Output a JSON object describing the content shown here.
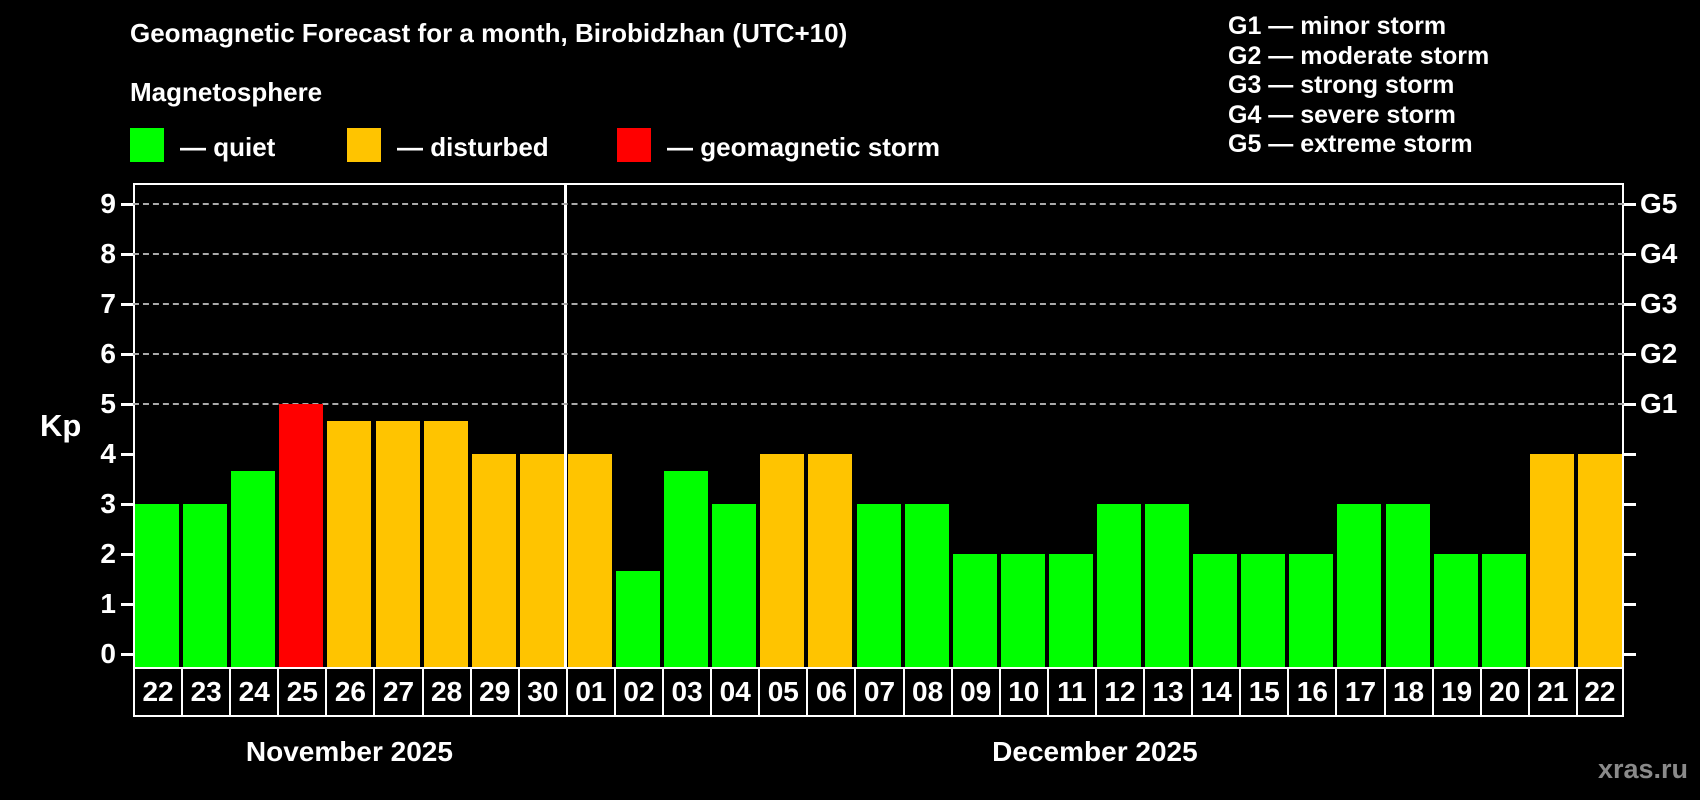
{
  "title": "Geomagnetic Forecast for a month, Birobidzhan (UTC+10)",
  "subtitle": "Magnetosphere",
  "legend": {
    "items": [
      {
        "key": "quiet",
        "label": "— quiet",
        "color": "#00ff00"
      },
      {
        "key": "disturbed",
        "label": "— disturbed",
        "color": "#ffc400"
      },
      {
        "key": "storm",
        "label": "— geomagnetic storm",
        "color": "#ff0000"
      }
    ]
  },
  "g_scale_legend": [
    "G1 — minor storm",
    "G2 — moderate storm",
    "G3 — strong storm",
    "G4 — severe storm",
    "G5 — extreme storm"
  ],
  "watermark": "xras.ru",
  "chart_data": {
    "type": "bar",
    "ylabel": "Kp",
    "ylim": [
      0,
      9
    ],
    "yticks": [
      0,
      1,
      2,
      3,
      4,
      5,
      6,
      7,
      8,
      9
    ],
    "gridlines_at_kp": [
      5,
      6,
      7,
      8,
      9
    ],
    "grid": "dashed horizontal at storm levels only",
    "right_axis_labels": [
      {
        "kp": 5,
        "label": "G1"
      },
      {
        "kp": 6,
        "label": "G2"
      },
      {
        "kp": 7,
        "label": "G3"
      },
      {
        "kp": 8,
        "label": "G4"
      },
      {
        "kp": 9,
        "label": "G5"
      }
    ],
    "months": [
      {
        "label": "November 2025",
        "key": "nov",
        "days": 9
      },
      {
        "label": "December 2025",
        "key": "dec",
        "days": 22
      }
    ],
    "bars": [
      {
        "day": "22",
        "kp": 3,
        "status": "quiet"
      },
      {
        "day": "23",
        "kp": 3,
        "status": "quiet"
      },
      {
        "day": "24",
        "kp": 3.67,
        "status": "quiet"
      },
      {
        "day": "25",
        "kp": 5,
        "status": "storm"
      },
      {
        "day": "26",
        "kp": 4.67,
        "status": "disturbed"
      },
      {
        "day": "27",
        "kp": 4.67,
        "status": "disturbed"
      },
      {
        "day": "28",
        "kp": 4.67,
        "status": "disturbed"
      },
      {
        "day": "29",
        "kp": 4,
        "status": "disturbed"
      },
      {
        "day": "30",
        "kp": 4,
        "status": "disturbed"
      },
      {
        "day": "01",
        "kp": 4,
        "status": "disturbed"
      },
      {
        "day": "02",
        "kp": 1.67,
        "status": "quiet"
      },
      {
        "day": "03",
        "kp": 3.67,
        "status": "quiet"
      },
      {
        "day": "04",
        "kp": 3,
        "status": "quiet"
      },
      {
        "day": "05",
        "kp": 4,
        "status": "disturbed"
      },
      {
        "day": "06",
        "kp": 4,
        "status": "disturbed"
      },
      {
        "day": "07",
        "kp": 3,
        "status": "quiet"
      },
      {
        "day": "08",
        "kp": 3,
        "status": "quiet"
      },
      {
        "day": "09",
        "kp": 2,
        "status": "quiet"
      },
      {
        "day": "10",
        "kp": 2,
        "status": "quiet"
      },
      {
        "day": "11",
        "kp": 2,
        "status": "quiet"
      },
      {
        "day": "12",
        "kp": 3,
        "status": "quiet"
      },
      {
        "day": "13",
        "kp": 3,
        "status": "quiet"
      },
      {
        "day": "14",
        "kp": 2,
        "status": "quiet"
      },
      {
        "day": "15",
        "kp": 2,
        "status": "quiet"
      },
      {
        "day": "16",
        "kp": 2,
        "status": "quiet"
      },
      {
        "day": "17",
        "kp": 3,
        "status": "quiet"
      },
      {
        "day": "18",
        "kp": 3,
        "status": "quiet"
      },
      {
        "day": "19",
        "kp": 2,
        "status": "quiet"
      },
      {
        "day": "20",
        "kp": 2,
        "status": "quiet"
      },
      {
        "day": "21",
        "kp": 4,
        "status": "disturbed"
      },
      {
        "day": "22",
        "kp": 4,
        "status": "disturbed"
      }
    ]
  }
}
